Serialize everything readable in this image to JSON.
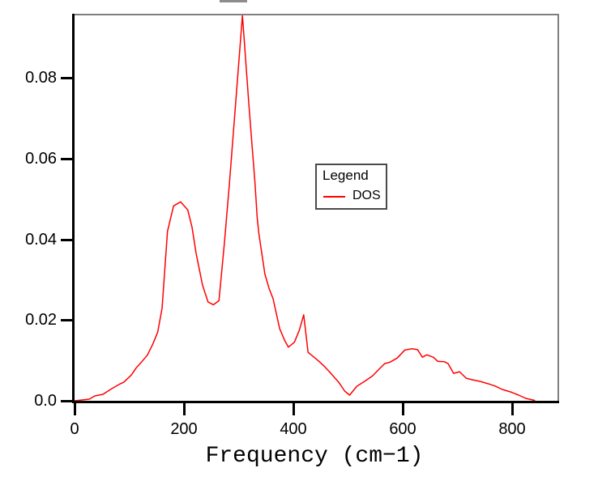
{
  "colors": {
    "background": "#ffffff",
    "axis": "#000000",
    "frame": "#7f7f7f",
    "dos_line": "#ff0000"
  },
  "chart_data": {
    "type": "line",
    "title": "",
    "xlabel": "Frequency (cm−1)",
    "ylabel": "",
    "xlim": [
      0,
      883
    ],
    "ylim": [
      0,
      0.0955
    ],
    "grid": false,
    "x_tick_values": [
      0,
      200,
      400,
      600,
      800
    ],
    "y_tick_values": [
      0.0,
      0.02,
      0.04,
      0.06,
      0.08
    ],
    "x_tick_labels": [
      "0",
      "200",
      "400",
      "600",
      "800"
    ],
    "y_tick_labels": [
      "0.0",
      "0.02",
      "0.04",
      "0.06",
      "0.08"
    ],
    "legend": {
      "title": "Legend",
      "position": "center",
      "entries": [
        {
          "label": "DOS",
          "color": "#ff0000"
        }
      ]
    },
    "series": [
      {
        "name": "DOS",
        "color": "#ff0000",
        "points": [
          [
            0,
            0.0
          ],
          [
            14,
            0.0002
          ],
          [
            27,
            0.0004
          ],
          [
            37,
            0.0012
          ],
          [
            52,
            0.0016
          ],
          [
            68,
            0.003
          ],
          [
            82,
            0.0041
          ],
          [
            90,
            0.0046
          ],
          [
            104,
            0.0064
          ],
          [
            113,
            0.0082
          ],
          [
            123,
            0.0097
          ],
          [
            133,
            0.0113
          ],
          [
            143,
            0.014
          ],
          [
            152,
            0.017
          ],
          [
            160,
            0.0229
          ],
          [
            170,
            0.042
          ],
          [
            181,
            0.0483
          ],
          [
            194,
            0.0493
          ],
          [
            207,
            0.0473
          ],
          [
            215,
            0.0429
          ],
          [
            222,
            0.0368
          ],
          [
            234,
            0.0287
          ],
          [
            244,
            0.0245
          ],
          [
            254,
            0.0238
          ],
          [
            264,
            0.0248
          ],
          [
            274,
            0.039
          ],
          [
            283,
            0.0535
          ],
          [
            295,
            0.0745
          ],
          [
            307,
            0.0955
          ],
          [
            319,
            0.073
          ],
          [
            330,
            0.0539
          ],
          [
            334,
            0.0454
          ],
          [
            337,
            0.0414
          ],
          [
            348,
            0.0314
          ],
          [
            356,
            0.0277
          ],
          [
            363,
            0.0253
          ],
          [
            375,
            0.0179
          ],
          [
            384,
            0.015
          ],
          [
            391,
            0.0133
          ],
          [
            402,
            0.0145
          ],
          [
            411,
            0.0175
          ],
          [
            419,
            0.0213
          ],
          [
            427,
            0.012
          ],
          [
            437,
            0.0109
          ],
          [
            446,
            0.0099
          ],
          [
            457,
            0.0085
          ],
          [
            466,
            0.0072
          ],
          [
            483,
            0.0046
          ],
          [
            494,
            0.0024
          ],
          [
            503,
            0.0014
          ],
          [
            516,
            0.0036
          ],
          [
            530,
            0.0048
          ],
          [
            545,
            0.0062
          ],
          [
            558,
            0.008
          ],
          [
            567,
            0.0092
          ],
          [
            577,
            0.0096
          ],
          [
            590,
            0.0106
          ],
          [
            604,
            0.0126
          ],
          [
            617,
            0.0129
          ],
          [
            627,
            0.0127
          ],
          [
            636,
            0.0108
          ],
          [
            644,
            0.0114
          ],
          [
            656,
            0.0108
          ],
          [
            664,
            0.0098
          ],
          [
            676,
            0.0097
          ],
          [
            683,
            0.0092
          ],
          [
            693,
            0.0068
          ],
          [
            704,
            0.0072
          ],
          [
            716,
            0.0056
          ],
          [
            728,
            0.0052
          ],
          [
            742,
            0.0048
          ],
          [
            757,
            0.0042
          ],
          [
            770,
            0.0036
          ],
          [
            782,
            0.0028
          ],
          [
            797,
            0.0022
          ],
          [
            812,
            0.0014
          ],
          [
            825,
            0.0006
          ],
          [
            841,
            0.0001
          ]
        ]
      }
    ]
  }
}
